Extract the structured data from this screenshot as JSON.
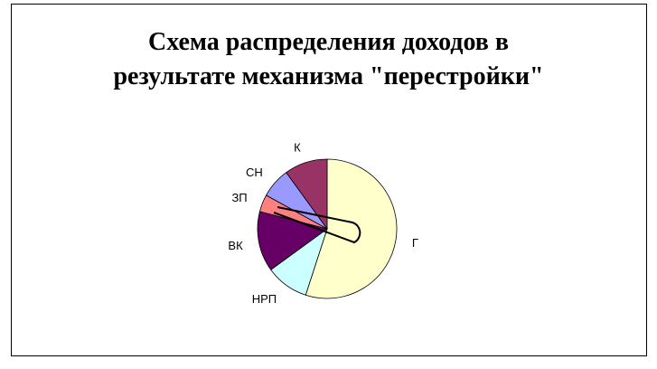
{
  "chart_data": {
    "type": "pie",
    "title_lines": [
      "Схема распределения доходов в",
      "результате механизма \"перестройки\""
    ],
    "slices": [
      {
        "label": "Г",
        "value": 55,
        "color": "#FFFFCC"
      },
      {
        "label": "НРП",
        "value": 10,
        "color": "#CCFFFF"
      },
      {
        "label": "ВК",
        "value": 14,
        "color": "#660066"
      },
      {
        "label": "ЗП",
        "value": 4,
        "color": "#FF8080"
      },
      {
        "label": "СН",
        "value": 7,
        "color": "#9999FF"
      },
      {
        "label": "К",
        "value": 10,
        "color": "#993366"
      }
    ],
    "start": "top",
    "direction": "clockwise"
  }
}
